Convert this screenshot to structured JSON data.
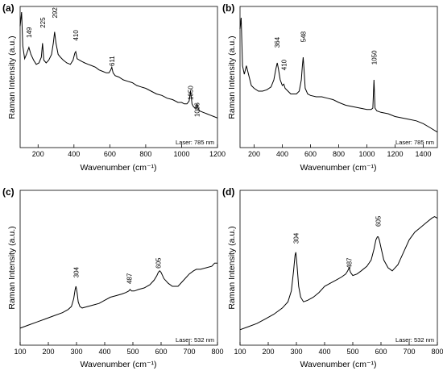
{
  "chart_data": [
    {
      "type": "line",
      "panel": "(a)",
      "xlabel": "Wavenumber (cm⁻¹)",
      "ylabel": "Raman Intensity (a.u.)",
      "xlim": [
        100,
        1200
      ],
      "ylim": [
        0,
        100
      ],
      "xticks": [
        200,
        400,
        600,
        800,
        1000,
        1200
      ],
      "y_tick_labels": false,
      "note": "Laser: 785 nm",
      "peak_labels": [
        {
          "text": "149",
          "x": 149,
          "y": 76
        },
        {
          "text": "225",
          "x": 225,
          "y": 83
        },
        {
          "text": "292",
          "x": 292,
          "y": 90
        },
        {
          "text": "410",
          "x": 410,
          "y": 74
        },
        {
          "text": "611",
          "x": 611,
          "y": 56
        },
        {
          "text": "1050",
          "x": 1050,
          "y": 32
        },
        {
          "text": "1086",
          "x": 1086,
          "y": 20
        }
      ],
      "series": [
        {
          "x": [
            100,
            108,
            115,
            125,
            135,
            149,
            160,
            175,
            190,
            205,
            218,
            225,
            232,
            245,
            260,
            275,
            285,
            292,
            300,
            312,
            325,
            340,
            360,
            380,
            395,
            405,
            410,
            418,
            430,
            445,
            460,
            480,
            500,
            520,
            540,
            560,
            580,
            595,
            605,
            611,
            618,
            630,
            650,
            675,
            700,
            725,
            750,
            775,
            800,
            830,
            860,
            890,
            920,
            950,
            980,
            1000,
            1015,
            1030,
            1042,
            1050,
            1058,
            1066,
            1075,
            1080,
            1086,
            1092,
            1100,
            1120,
            1140,
            1160,
            1180,
            1200
          ],
          "y": [
            86,
            96,
            72,
            63,
            66,
            71,
            66,
            62,
            59,
            60,
            64,
            74,
            62,
            60,
            62,
            66,
            74,
            82,
            74,
            66,
            64,
            62,
            60,
            59,
            62,
            67,
            68,
            63,
            62,
            61,
            60,
            59,
            58,
            57,
            55,
            54,
            53,
            53,
            55,
            57,
            53,
            51,
            50,
            48,
            47,
            46,
            44,
            43,
            42,
            40,
            38,
            37,
            35,
            34,
            32,
            32,
            31,
            31,
            33,
            40,
            31,
            29,
            28,
            28,
            31,
            28,
            26,
            25,
            24,
            23,
            22,
            21
          ]
        }
      ]
    },
    {
      "type": "line",
      "panel": "(b)",
      "xlabel": "Wavenumber (cm⁻¹)",
      "ylabel": "Raman Intensity (a.u.)",
      "xlim": [
        100,
        1500
      ],
      "ylim": [
        0,
        100
      ],
      "xticks": [
        200,
        400,
        600,
        800,
        1000,
        1200,
        1400
      ],
      "y_tick_labels": false,
      "note": "Laser: 785 nm",
      "peak_labels": [
        {
          "text": "364",
          "x": 364,
          "y": 69
        },
        {
          "text": "410",
          "x": 410,
          "y": 53
        },
        {
          "text": "548",
          "x": 548,
          "y": 73
        },
        {
          "text": "1050",
          "x": 1050,
          "y": 57
        }
      ],
      "series": [
        {
          "x": [
            100,
            108,
            118,
            130,
            145,
            160,
            180,
            200,
            230,
            260,
            290,
            320,
            340,
            355,
            364,
            372,
            385,
            400,
            410,
            420,
            440,
            460,
            480,
            500,
            520,
            535,
            542,
            548,
            554,
            562,
            580,
            600,
            640,
            680,
            720,
            760,
            800,
            850,
            900,
            950,
            1000,
            1030,
            1042,
            1050,
            1058,
            1070,
            1100,
            1150,
            1200,
            1250,
            1300,
            1350,
            1400,
            1450,
            1500
          ],
          "y": [
            84,
            92,
            58,
            52,
            58,
            52,
            44,
            42,
            40,
            40,
            41,
            43,
            48,
            56,
            60,
            56,
            48,
            44,
            45,
            42,
            40,
            38,
            38,
            38,
            40,
            48,
            58,
            64,
            56,
            42,
            38,
            37,
            36,
            36,
            35,
            34,
            32,
            30,
            29,
            28,
            27,
            27,
            28,
            48,
            28,
            26,
            25,
            24,
            22,
            21,
            20,
            19,
            17,
            14,
            11
          ]
        }
      ]
    },
    {
      "type": "line",
      "panel": "(c)",
      "xlabel": "Wavenumber (cm⁻¹)",
      "ylabel": "Raman Intensity (a.u.)",
      "xlim": [
        100,
        800
      ],
      "ylim": [
        0,
        100
      ],
      "xticks": [
        100,
        200,
        300,
        400,
        500,
        600,
        700,
        800
      ],
      "y_tick_labels": false,
      "note": "Laser: 532 nm",
      "peak_labels": [
        {
          "text": "304",
          "x": 298,
          "y": 42
        },
        {
          "text": "487",
          "x": 487,
          "y": 38
        },
        {
          "text": "605",
          "x": 590,
          "y": 48
        }
      ],
      "series": [
        {
          "x": [
            100,
            130,
            160,
            190,
            220,
            250,
            270,
            282,
            290,
            295,
            298,
            302,
            306,
            312,
            320,
            340,
            360,
            380,
            400,
            420,
            440,
            460,
            475,
            485,
            490,
            495,
            505,
            520,
            540,
            560,
            575,
            585,
            590,
            595,
            600,
            610,
            625,
            640,
            660,
            680,
            700,
            715,
            725,
            740,
            760,
            780,
            790,
            800
          ],
          "y": [
            11,
            13,
            15,
            17,
            19,
            21,
            23,
            25,
            30,
            36,
            38,
            34,
            28,
            25,
            24,
            25,
            26,
            27,
            29,
            31,
            32,
            33,
            34,
            35,
            36,
            35,
            35,
            36,
            37,
            39,
            42,
            45,
            47,
            48,
            47,
            43,
            40,
            38,
            38,
            42,
            46,
            48,
            49,
            49,
            50,
            51,
            53,
            53
          ]
        }
      ]
    },
    {
      "type": "line",
      "panel": "(d)",
      "xlabel": "Wavenumber (cm⁻¹)",
      "ylabel": "Raman Intensity (a.u.)",
      "xlim": [
        100,
        800
      ],
      "ylim": [
        0,
        100
      ],
      "xticks": [
        100,
        200,
        300,
        400,
        500,
        600,
        700,
        800
      ],
      "y_tick_labels": false,
      "note": "Laser: 532 nm",
      "peak_labels": [
        {
          "text": "304",
          "x": 298,
          "y": 64
        },
        {
          "text": "487",
          "x": 487,
          "y": 48
        },
        {
          "text": "605",
          "x": 590,
          "y": 75
        }
      ],
      "series": [
        {
          "x": [
            100,
            130,
            160,
            190,
            220,
            250,
            270,
            282,
            290,
            295,
            298,
            302,
            308,
            315,
            325,
            340,
            360,
            380,
            400,
            420,
            440,
            460,
            475,
            482,
            487,
            492,
            500,
            515,
            530,
            550,
            565,
            575,
            582,
            587,
            590,
            594,
            600,
            610,
            625,
            640,
            660,
            680,
            700,
            720,
            740,
            760,
            780,
            790,
            800
          ],
          "y": [
            10,
            12,
            14,
            17,
            20,
            24,
            28,
            35,
            48,
            58,
            60,
            52,
            38,
            31,
            28,
            29,
            31,
            34,
            38,
            40,
            42,
            44,
            46,
            48,
            50,
            47,
            45,
            46,
            48,
            51,
            55,
            62,
            68,
            70,
            70,
            68,
            63,
            55,
            50,
            48,
            52,
            60,
            68,
            73,
            76,
            79,
            82,
            83,
            82
          ]
        }
      ]
    }
  ]
}
